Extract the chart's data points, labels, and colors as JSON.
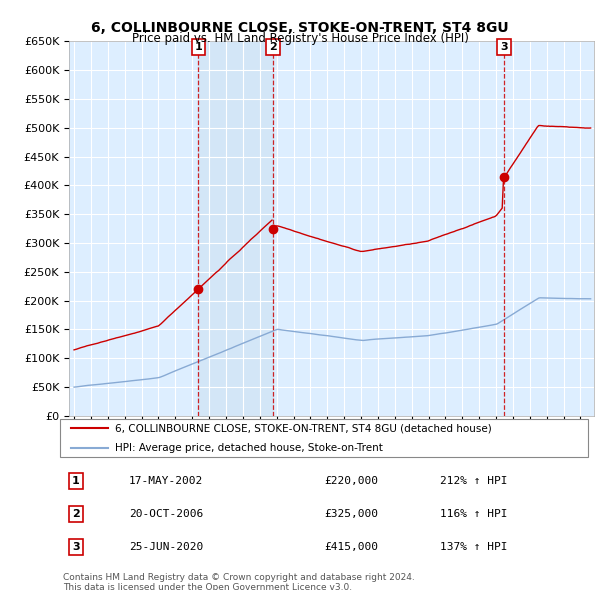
{
  "title": "6, COLLINBOURNE CLOSE, STOKE-ON-TRENT, ST4 8GU",
  "subtitle": "Price paid vs. HM Land Registry's House Price Index (HPI)",
  "ylim": [
    0,
    650000
  ],
  "yticks": [
    0,
    50000,
    100000,
    150000,
    200000,
    250000,
    300000,
    350000,
    400000,
    450000,
    500000,
    550000,
    600000,
    650000
  ],
  "ytick_labels": [
    "£0",
    "£50K",
    "£100K",
    "£150K",
    "£200K",
    "£250K",
    "£300K",
    "£350K",
    "£400K",
    "£450K",
    "£500K",
    "£550K",
    "£600K",
    "£650K"
  ],
  "xlim_start": 1994.7,
  "xlim_end": 2025.8,
  "sales": [
    {
      "label": "1",
      "date": "17-MAY-2002",
      "year": 2002.37,
      "price": 220000,
      "hpi_pct": "212%"
    },
    {
      "label": "2",
      "date": "20-OCT-2006",
      "year": 2006.79,
      "price": 325000,
      "hpi_pct": "116%"
    },
    {
      "label": "3",
      "date": "25-JUN-2020",
      "year": 2020.47,
      "price": 415000,
      "hpi_pct": "137%"
    }
  ],
  "legend_entries": [
    "6, COLLINBOURNE CLOSE, STOKE-ON-TRENT, ST4 8GU (detached house)",
    "HPI: Average price, detached house, Stoke-on-Trent"
  ],
  "footer_line1": "Contains HM Land Registry data © Crown copyright and database right 2024.",
  "footer_line2": "This data is licensed under the Open Government Licence v3.0.",
  "red_color": "#cc0000",
  "blue_color": "#88aad4",
  "shade_color": "#d0e4f5",
  "background_color": "#ddeeff",
  "plot_bg_color": "#ddeeff"
}
